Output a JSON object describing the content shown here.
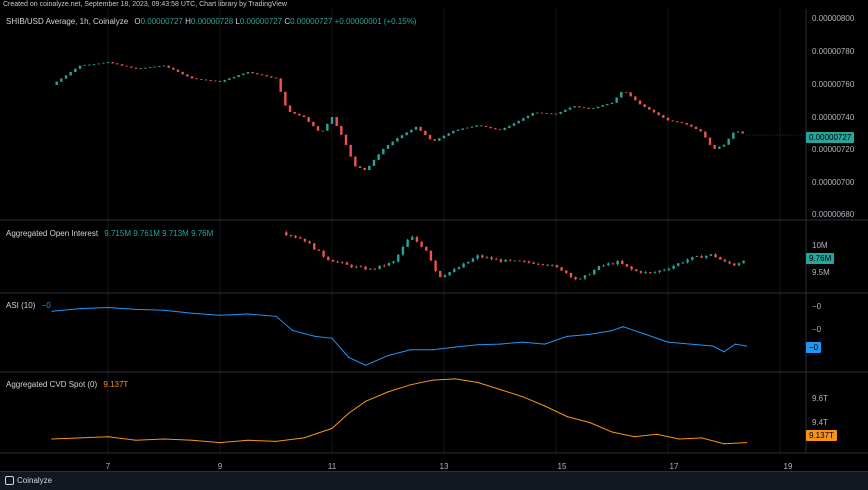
{
  "header": {
    "text": "Created on coinalyze.net, September 18, 2023, 09:43:58 UTC, Chart library by TradingView"
  },
  "footer": {
    "brand": "Coinalyze"
  },
  "main": {
    "title": "SHIB/USD Average, 1h, Coinalyze",
    "ohlc": [
      {
        "k": "O",
        "v": "0.00000727"
      },
      {
        "k": "H",
        "v": "0.00000728"
      },
      {
        "k": "L",
        "v": "0.00000727"
      },
      {
        "k": "C",
        "v": "0.00000727"
      }
    ],
    "change": "+0.00000001 (+0.15%)",
    "y_ticks": [
      "0.00000800",
      "0.00000780",
      "0.00000760",
      "0.00000740",
      "0.00000720",
      "0.00000700",
      "0.00000680"
    ],
    "last_price_tag": "0.00000727"
  },
  "oi": {
    "title": "Aggregated Open Interest",
    "values": [
      "9.715M",
      "9.761M",
      "9.713M",
      "9.76M"
    ],
    "y_ticks": [
      "10M",
      "9.5M"
    ],
    "tag": "9.76M"
  },
  "asi": {
    "title": "ASI (10)",
    "value": "−0",
    "y_ticks": [
      "−0",
      "−0"
    ],
    "tag": "−0"
  },
  "cvd": {
    "title": "Aggregated CVD Spot (0)",
    "value": "9.137T",
    "y_ticks": [
      "9.6T",
      "9.4T"
    ],
    "tag": "9.137T"
  },
  "x_ticks": [
    "7",
    "9",
    "11",
    "13",
    "15",
    "17",
    "19"
  ],
  "colors": {
    "up": "#26a69a",
    "down": "#ef5350",
    "asi": "#2196f3",
    "cvd": "#f7931a",
    "grid": "#2a2e39"
  },
  "chart_data": [
    {
      "type": "candlestick",
      "title": "SHIB/USD Average, 1h, Coinalyze",
      "ylim": [
        6.75e-06,
        8.05e-06
      ],
      "x": [
        "7",
        "9",
        "11",
        "13",
        "15",
        "17",
        "19"
      ],
      "close_path": [
        [
          6.0,
          7.58e-06
        ],
        [
          6.5,
          7.7e-06
        ],
        [
          7.0,
          7.72e-06
        ],
        [
          7.5,
          7.68e-06
        ],
        [
          8.0,
          7.7e-06
        ],
        [
          8.5,
          7.62e-06
        ],
        [
          9.0,
          7.6e-06
        ],
        [
          9.5,
          7.66e-06
        ],
        [
          10.0,
          7.62e-06
        ],
        [
          10.2,
          7.42e-06
        ],
        [
          10.5,
          7.38e-06
        ],
        [
          10.8,
          7.28e-06
        ],
        [
          11.0,
          7.38e-06
        ],
        [
          11.2,
          7.25e-06
        ],
        [
          11.4,
          7.08e-06
        ],
        [
          11.6,
          7.05e-06
        ],
        [
          11.9,
          7.18e-06
        ],
        [
          12.2,
          7.26e-06
        ],
        [
          12.5,
          7.32e-06
        ],
        [
          12.8,
          7.23e-06
        ],
        [
          13.2,
          7.3e-06
        ],
        [
          13.6,
          7.33e-06
        ],
        [
          14.0,
          7.3e-06
        ],
        [
          14.3,
          7.35e-06
        ],
        [
          14.6,
          7.41e-06
        ],
        [
          15.0,
          7.4e-06
        ],
        [
          15.3,
          7.45e-06
        ],
        [
          15.6,
          7.43e-06
        ],
        [
          16.0,
          7.47e-06
        ],
        [
          16.2,
          7.55e-06
        ],
        [
          16.5,
          7.46e-06
        ],
        [
          16.8,
          7.4e-06
        ],
        [
          17.0,
          7.36e-06
        ],
        [
          17.3,
          7.34e-06
        ],
        [
          17.6,
          7.29e-06
        ],
        [
          17.8,
          7.18e-06
        ],
        [
          18.0,
          7.21e-06
        ],
        [
          18.2,
          7.3e-06
        ],
        [
          18.4,
          7.27e-06
        ]
      ]
    },
    {
      "type": "candlestick",
      "title": "Aggregated Open Interest",
      "ylim": [
        9.3,
        10.25
      ],
      "close_path": [
        [
          10.1,
          10.1
        ],
        [
          10.5,
          10.0
        ],
        [
          10.9,
          9.75
        ],
        [
          11.3,
          9.65
        ],
        [
          11.7,
          9.6
        ],
        [
          12.1,
          9.7
        ],
        [
          12.4,
          10.05
        ],
        [
          12.7,
          9.85
        ],
        [
          12.9,
          9.5
        ],
        [
          13.2,
          9.6
        ],
        [
          13.6,
          9.78
        ],
        [
          14.0,
          9.72
        ],
        [
          14.4,
          9.7
        ],
        [
          14.8,
          9.68
        ],
        [
          15.1,
          9.6
        ],
        [
          15.4,
          9.45
        ],
        [
          15.8,
          9.65
        ],
        [
          16.1,
          9.7
        ],
        [
          16.4,
          9.58
        ],
        [
          16.7,
          9.55
        ],
        [
          17.0,
          9.62
        ],
        [
          17.4,
          9.75
        ],
        [
          17.8,
          9.8
        ],
        [
          18.0,
          9.7
        ],
        [
          18.2,
          9.66
        ],
        [
          18.4,
          9.76
        ]
      ]
    },
    {
      "type": "line",
      "title": "ASI (10)",
      "ylim": [
        -1,
        1
      ],
      "x": [
        6.0,
        6.5,
        7.0,
        7.5,
        8.0,
        8.5,
        9.0,
        9.5,
        10.0,
        10.3,
        10.7,
        11.0,
        11.3,
        11.6,
        12.0,
        12.4,
        12.8,
        13.2,
        13.6,
        14.0,
        14.4,
        14.8,
        15.2,
        15.6,
        16.0,
        16.2,
        16.6,
        17.0,
        17.4,
        17.8,
        18.0,
        18.2,
        18.4
      ],
      "y": [
        0.55,
        0.62,
        0.65,
        0.6,
        0.58,
        0.5,
        0.45,
        0.48,
        0.42,
        0.05,
        -0.1,
        -0.15,
        -0.65,
        -0.85,
        -0.6,
        -0.45,
        -0.45,
        -0.38,
        -0.32,
        -0.3,
        -0.25,
        -0.3,
        -0.1,
        -0.05,
        0.05,
        0.15,
        -0.05,
        -0.25,
        -0.3,
        -0.35,
        -0.5,
        -0.3,
        -0.35
      ]
    },
    {
      "type": "line",
      "title": "Aggregated CVD Spot (0)",
      "ylim": [
        9.05,
        9.72
      ],
      "x": [
        6.0,
        6.5,
        7.0,
        7.5,
        8.0,
        8.5,
        9.0,
        9.5,
        10.0,
        10.5,
        11.0,
        11.3,
        11.6,
        12.0,
        12.4,
        12.8,
        13.2,
        13.6,
        14.0,
        14.4,
        14.8,
        15.2,
        15.6,
        16.0,
        16.4,
        16.8,
        17.2,
        17.6,
        18.0,
        18.4
      ],
      "y": [
        9.16,
        9.17,
        9.18,
        9.15,
        9.16,
        9.15,
        9.13,
        9.15,
        9.14,
        9.17,
        9.25,
        9.38,
        9.48,
        9.56,
        9.62,
        9.66,
        9.67,
        9.64,
        9.58,
        9.52,
        9.44,
        9.35,
        9.3,
        9.22,
        9.18,
        9.2,
        9.16,
        9.17,
        9.12,
        9.13
      ]
    }
  ]
}
